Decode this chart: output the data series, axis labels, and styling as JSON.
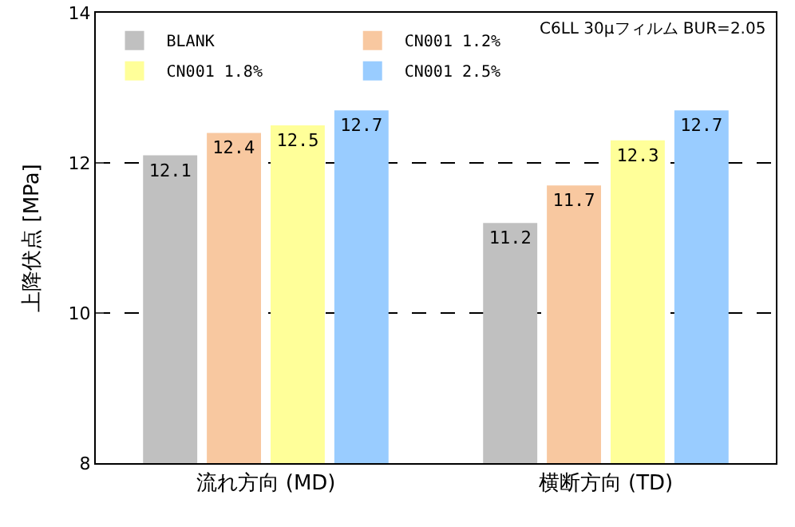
{
  "chart_data": {
    "type": "bar",
    "ylabel": "上降伏点 [MPa]",
    "categories": [
      "流れ方向 (MD)",
      "横断方向 (TD)"
    ],
    "series": [
      {
        "name": "BLANK",
        "color": "#c0c0c0",
        "values": [
          12.1,
          11.2
        ]
      },
      {
        "name": "CN001 1.2%",
        "color": "#f8c8a0",
        "values": [
          12.4,
          11.7
        ]
      },
      {
        "name": "CN001 1.8%",
        "color": "#ffff99",
        "values": [
          12.5,
          12.3
        ]
      },
      {
        "name": "CN001 2.5%",
        "color": "#99ccff",
        "values": [
          12.7,
          12.7
        ]
      }
    ],
    "ylim": [
      8,
      14
    ],
    "yticks": [
      8,
      10,
      12,
      14
    ],
    "grid": "y",
    "line_style": "dashed",
    "legend": "top left",
    "data_labels": true,
    "annotations": [
      "C6LL 30μフィルム BUR=2.05"
    ]
  }
}
